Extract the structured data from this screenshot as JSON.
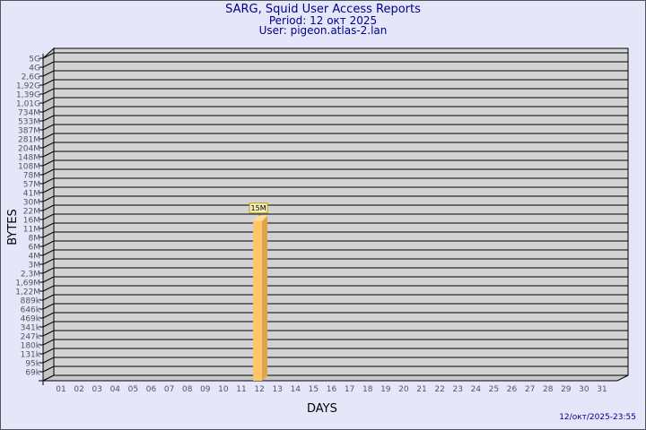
{
  "title": "SARG, Squid User Access Reports",
  "period": "Period: 12 окт 2025",
  "user": "User: pigeon.atlas-2.lan",
  "generated": "12/окт/2025-23:55",
  "colors": {
    "background": "#e6e6fa",
    "plot": "#d3d3d3",
    "bar": "#ffc66b",
    "bar_side": "#e0a44a",
    "title": "#00008b"
  },
  "chart_data": {
    "type": "bar",
    "xlabel": "DAYS",
    "ylabel": "BYTES",
    "y_scale": "log",
    "y_tick_labels": [
      "5G",
      "4G",
      "2,6G",
      "1,92G",
      "1,39G",
      "1,01G",
      "734M",
      "533M",
      "387M",
      "281M",
      "204M",
      "148M",
      "108M",
      "78M",
      "57M",
      "41M",
      "30M",
      "22M",
      "16M",
      "11M",
      "8M",
      "6M",
      "4M",
      "3M",
      "2,3M",
      "1,69M",
      "1,22M",
      "889k",
      "646k",
      "469k",
      "341k",
      "247k",
      "180k",
      "131k",
      "95k",
      "69k"
    ],
    "y_tick_values": [
      5000000000.0,
      4000000000.0,
      2600000000.0,
      1920000000.0,
      1390000000.0,
      1010000000.0,
      734000000.0,
      533000000.0,
      387000000.0,
      281000000.0,
      204000000.0,
      148000000.0,
      108000000.0,
      78000000.0,
      57000000.0,
      41000000.0,
      30000000.0,
      22000000.0,
      16000000.0,
      11000000.0,
      8000000.0,
      6000000.0,
      4000000.0,
      3000000.0,
      2300000.0,
      1690000.0,
      1220000.0,
      889000.0,
      646000.0,
      469000.0,
      341000.0,
      247000.0,
      180000.0,
      131000.0,
      95000.0,
      69000.0
    ],
    "categories": [
      "01",
      "02",
      "03",
      "04",
      "05",
      "06",
      "07",
      "08",
      "09",
      "10",
      "11",
      "12",
      "13",
      "14",
      "15",
      "16",
      "17",
      "18",
      "19",
      "20",
      "21",
      "22",
      "23",
      "24",
      "25",
      "26",
      "27",
      "28",
      "29",
      "30",
      "31"
    ],
    "values": [
      0,
      0,
      0,
      0,
      0,
      0,
      0,
      0,
      0,
      0,
      0,
      15000000,
      0,
      0,
      0,
      0,
      0,
      0,
      0,
      0,
      0,
      0,
      0,
      0,
      0,
      0,
      0,
      0,
      0,
      0,
      0
    ],
    "data_labels": {
      "12": "15M"
    },
    "grid": true
  }
}
